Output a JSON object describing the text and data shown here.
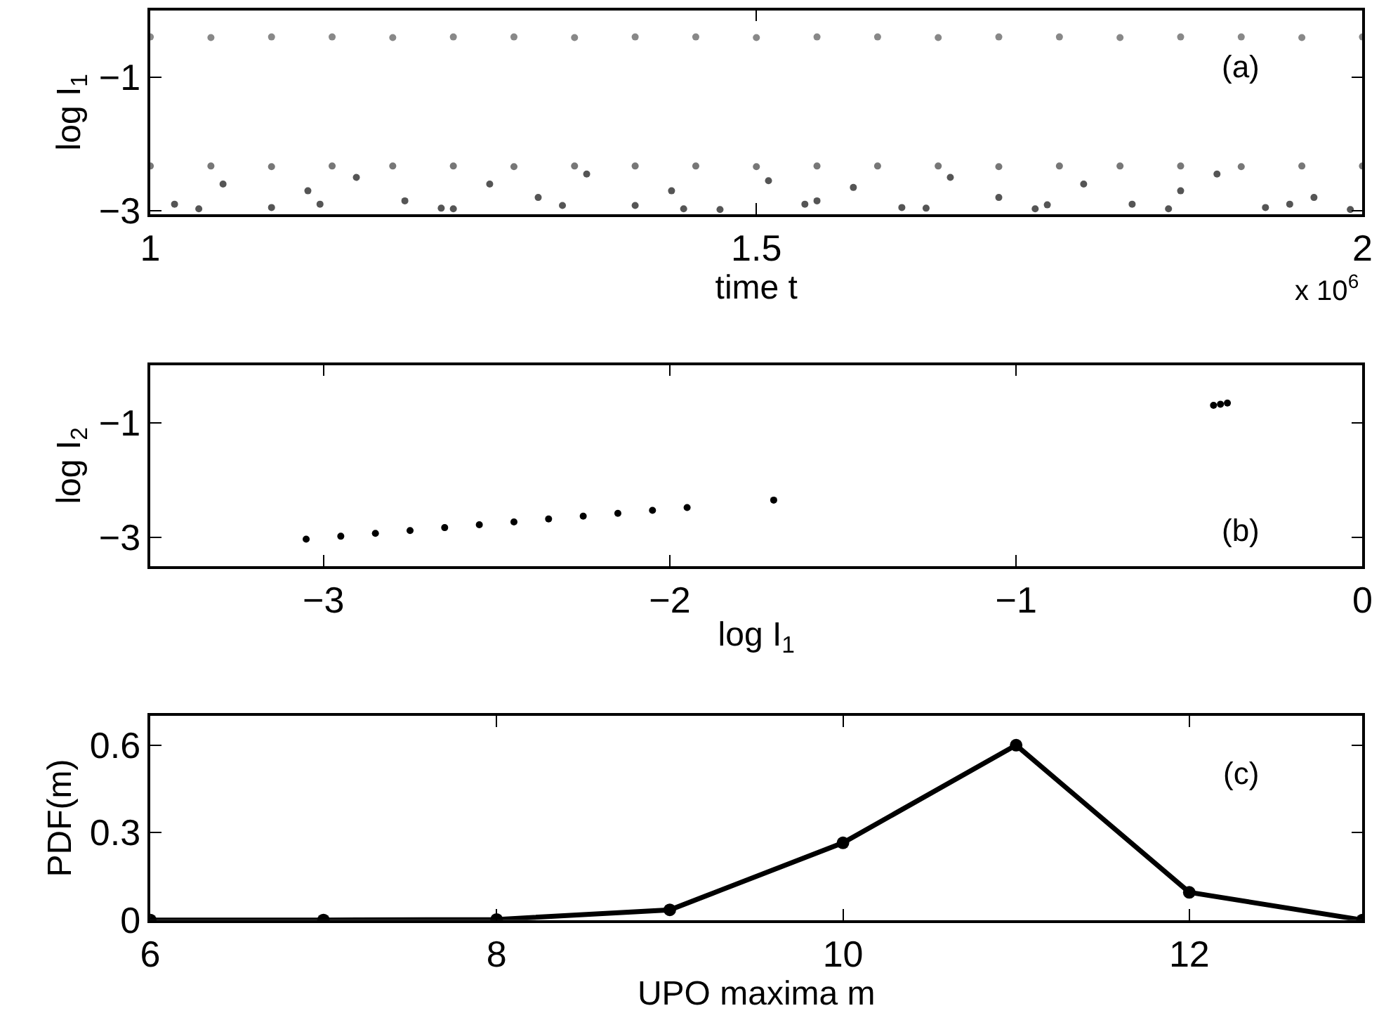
{
  "chart_data": [
    {
      "type": "scatter",
      "xlabel": "time t",
      "ylabel": "log I$_{1}$",
      "annotations": [
        "(a)",
        "x 10$^{6}$"
      ],
      "xlim": [
        1,
        2
      ],
      "xticks": [
        1,
        1.5,
        2
      ],
      "ylim": [
        -3.05,
        0
      ],
      "yticks": [
        -1,
        -3
      ],
      "series": [
        {
          "color": "#888888",
          "x": [
            1.0,
            1.05,
            1.1,
            1.15,
            1.2,
            1.25,
            1.3,
            1.35,
            1.4,
            1.45,
            1.5,
            1.55,
            1.6,
            1.65,
            1.7,
            1.75,
            1.8,
            1.85,
            1.9,
            1.95,
            2.0
          ],
          "values": [
            -0.4,
            -0.41,
            -0.4,
            -0.4,
            -0.41,
            -0.4,
            -0.4,
            -0.41,
            -0.4,
            -0.4,
            -0.41,
            -0.4,
            -0.4,
            -0.41,
            -0.4,
            -0.4,
            -0.41,
            -0.4,
            -0.4,
            -0.41,
            -0.4
          ]
        },
        {
          "color": "#777777",
          "x": [
            1.0,
            1.05,
            1.1,
            1.15,
            1.2,
            1.25,
            1.3,
            1.35,
            1.4,
            1.45,
            1.5,
            1.55,
            1.6,
            1.65,
            1.7,
            1.75,
            1.8,
            1.85,
            1.9,
            1.95,
            2.0
          ],
          "values": [
            -2.33,
            -2.33,
            -2.34,
            -2.33,
            -2.33,
            -2.33,
            -2.34,
            -2.33,
            -2.33,
            -2.33,
            -2.34,
            -2.33,
            -2.33,
            -2.33,
            -2.34,
            -2.33,
            -2.33,
            -2.33,
            -2.34,
            -2.33,
            -2.33
          ]
        },
        {
          "color": "#555555",
          "x": [
            1.02,
            1.06,
            1.1,
            1.13,
            1.17,
            1.21,
            1.25,
            1.28,
            1.32,
            1.36,
            1.4,
            1.43,
            1.47,
            1.51,
            1.55,
            1.58,
            1.62,
            1.66,
            1.7,
            1.73,
            1.77,
            1.81,
            1.85,
            1.88,
            1.92,
            1.96,
            1.99,
            1.04,
            1.24,
            1.44,
            1.64,
            1.84,
            1.14,
            1.34,
            1.54,
            1.74,
            1.94
          ],
          "values": [
            -2.9,
            -2.6,
            -2.95,
            -2.7,
            -2.5,
            -2.85,
            -2.97,
            -2.6,
            -2.8,
            -2.45,
            -2.92,
            -2.7,
            -2.98,
            -2.55,
            -2.85,
            -2.65,
            -2.95,
            -2.5,
            -2.8,
            -2.97,
            -2.6,
            -2.9,
            -2.7,
            -2.45,
            -2.95,
            -2.8,
            -2.98,
            -2.97,
            -2.96,
            -2.97,
            -2.96,
            -2.97,
            -2.9,
            -2.92,
            -2.9,
            -2.91,
            -2.9
          ]
        }
      ]
    },
    {
      "type": "scatter",
      "xlabel": "log I$_{1}$",
      "ylabel": "log I$_{2}$",
      "annotations": [
        "(b)"
      ],
      "xlim": [
        -3.5,
        0
      ],
      "xticks": [
        -3,
        -2,
        -1,
        0
      ],
      "ylim": [
        -3.5,
        0
      ],
      "yticks": [
        -1,
        -3
      ],
      "series": [
        {
          "color": "#000000",
          "x": [
            -3.05,
            -2.95,
            -2.85,
            -2.75,
            -2.65,
            -2.55,
            -2.45,
            -2.35,
            -2.25,
            -2.15,
            -2.05,
            -1.95,
            -1.7,
            -0.43,
            -0.41,
            -0.39
          ],
          "values": [
            -3.03,
            -2.98,
            -2.93,
            -2.88,
            -2.83,
            -2.78,
            -2.73,
            -2.68,
            -2.63,
            -2.58,
            -2.53,
            -2.48,
            -2.35,
            -0.7,
            -0.68,
            -0.66
          ]
        }
      ]
    },
    {
      "type": "line",
      "xlabel": "UPO maxima m",
      "ylabel": "PDF(m)",
      "annotations": [
        "(c)"
      ],
      "xlim": [
        6,
        13
      ],
      "xticks": [
        6,
        8,
        10,
        12
      ],
      "ylim": [
        0,
        0.7
      ],
      "yticks": [
        0,
        0.3,
        0.6
      ],
      "marker": "circle",
      "line_style": "solid",
      "x": [
        6,
        7,
        8,
        9,
        10,
        11,
        12,
        13
      ],
      "series": [
        {
          "color": "#000000",
          "values": [
            0,
            0,
            0.002,
            0.035,
            0.265,
            0.6,
            0.095,
            0
          ]
        }
      ]
    }
  ]
}
